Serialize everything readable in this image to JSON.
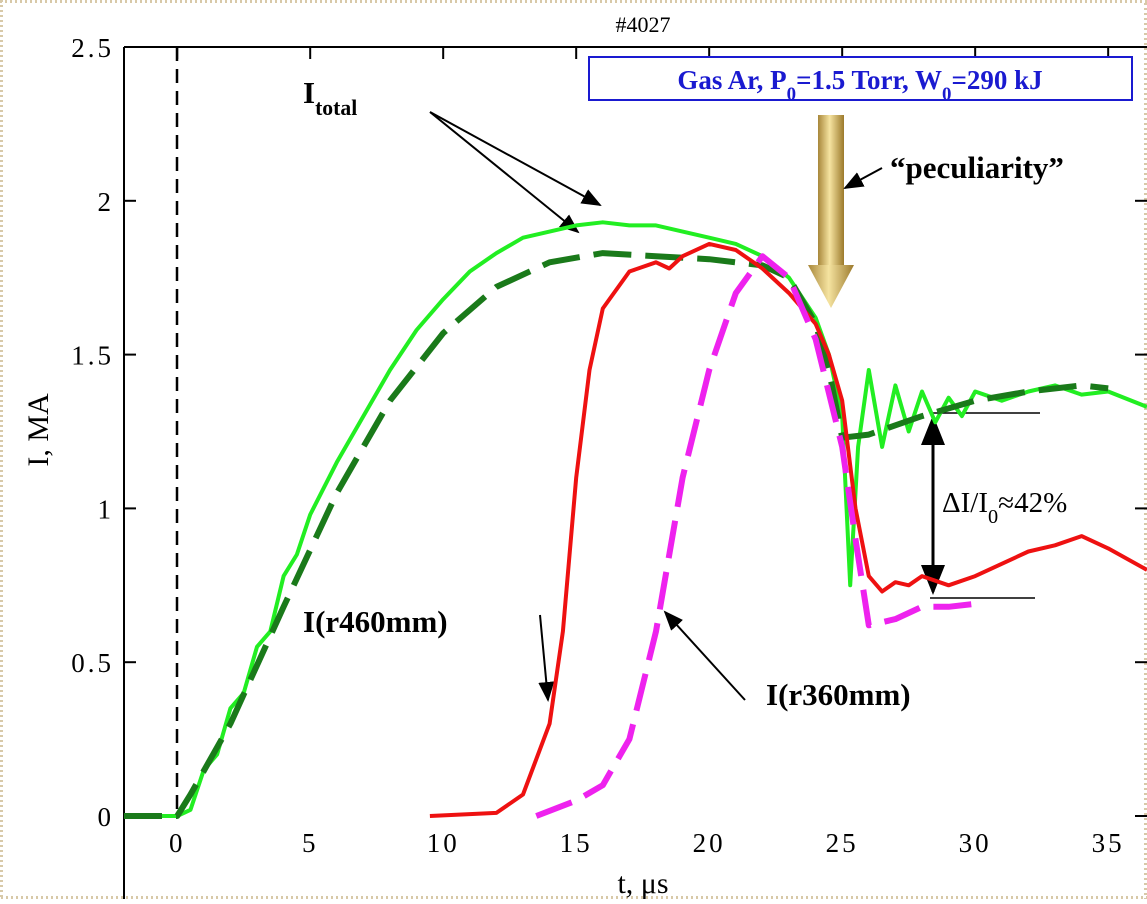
{
  "chart_data": {
    "type": "line",
    "title": "#4027",
    "xlabel": "t, μs",
    "ylabel": "I, MA",
    "xlim": [
      -2,
      36.46
    ],
    "ylim": [
      0,
      2.5
    ],
    "xticks": [
      0,
      5,
      10,
      15,
      20,
      25,
      30,
      35
    ],
    "yticks": [
      0,
      0.5,
      1,
      1.5,
      2,
      2.5
    ],
    "series": [
      {
        "color": "#22ee22",
        "dash": false,
        "x": [
          -2,
          0,
          0.5,
          1,
          1.5,
          2,
          2.5,
          3,
          3.5,
          4,
          4.5,
          5,
          6,
          7,
          8,
          9,
          10,
          11,
          12,
          13,
          14,
          15,
          16,
          17,
          18,
          19,
          20,
          21,
          22,
          23,
          24,
          24.5,
          25,
          25.3,
          25.6,
          26,
          26.5,
          27,
          27.5,
          28,
          28.5,
          29,
          29.5,
          30,
          31,
          32,
          33,
          34,
          35,
          36.46
        ],
        "values": [
          0,
          0,
          0.02,
          0.15,
          0.2,
          0.35,
          0.4,
          0.55,
          0.6,
          0.78,
          0.85,
          0.98,
          1.15,
          1.3,
          1.45,
          1.58,
          1.68,
          1.77,
          1.83,
          1.88,
          1.9,
          1.92,
          1.93,
          1.92,
          1.92,
          1.9,
          1.88,
          1.86,
          1.82,
          1.75,
          1.62,
          1.5,
          1.3,
          0.75,
          1.2,
          1.45,
          1.2,
          1.4,
          1.25,
          1.38,
          1.28,
          1.36,
          1.3,
          1.38,
          1.35,
          1.38,
          1.4,
          1.37,
          1.38,
          1.33
        ]
      },
      {
        "color": "#1a7a1a",
        "dash": true,
        "x": [
          -2,
          0,
          0.5,
          2,
          4,
          6,
          8,
          10,
          12,
          14,
          16,
          18,
          20,
          22,
          23,
          24,
          24.5,
          25,
          26,
          27,
          28,
          30,
          32,
          34,
          35
        ],
        "values": [
          0,
          0,
          0.07,
          0.3,
          0.68,
          1.05,
          1.35,
          1.57,
          1.72,
          1.8,
          1.83,
          1.82,
          1.81,
          1.79,
          1.75,
          1.6,
          1.45,
          1.23,
          1.24,
          1.27,
          1.3,
          1.35,
          1.38,
          1.4,
          1.39
        ]
      },
      {
        "name": "I(r460mm)",
        "color": "#ee1111",
        "dash": false,
        "x": [
          9.5,
          12,
          13,
          14,
          14.5,
          15,
          15.5,
          16,
          17,
          18,
          18.5,
          19,
          20,
          21,
          22,
          23,
          24,
          24.5,
          25,
          25.5,
          26,
          26.5,
          27,
          27.5,
          28,
          29,
          30,
          31,
          32,
          33,
          34,
          35,
          36.46
        ],
        "values": [
          0,
          0.01,
          0.07,
          0.3,
          0.6,
          1.1,
          1.45,
          1.65,
          1.77,
          1.8,
          1.78,
          1.82,
          1.86,
          1.84,
          1.78,
          1.7,
          1.6,
          1.5,
          1.35,
          1.0,
          0.78,
          0.73,
          0.76,
          0.75,
          0.78,
          0.75,
          0.78,
          0.82,
          0.86,
          0.88,
          0.91,
          0.87,
          0.8
        ]
      },
      {
        "name": "I(r360mm)",
        "color": "#ee22ee",
        "dash": true,
        "x": [
          13.5,
          15,
          16,
          17,
          18,
          19,
          20,
          21,
          22,
          23,
          24,
          25,
          25.5,
          26,
          27,
          28,
          29,
          30
        ],
        "values": [
          0,
          0.05,
          0.1,
          0.25,
          0.6,
          1.1,
          1.45,
          1.7,
          1.82,
          1.75,
          1.55,
          1.2,
          0.9,
          0.62,
          0.64,
          0.68,
          0.68,
          0.69
        ]
      }
    ],
    "annotations": {
      "itotal": [
        {
          "text": "I"
        },
        {
          "text": "total",
          "sub": true
        }
      ],
      "peculiarity": "“peculiarity”",
      "conditions": [
        {
          "text": "Gas Ar, P"
        },
        {
          "text": "0",
          "sub": true
        },
        {
          "text": "=1.5 Torr, W"
        },
        {
          "text": "0",
          "sub": true
        },
        {
          "text": "=290 kJ"
        }
      ],
      "delta": [
        {
          "text": "ΔI/I"
        },
        {
          "text": "0",
          "sub": true
        },
        {
          "text": "≈42%"
        }
      ]
    }
  }
}
